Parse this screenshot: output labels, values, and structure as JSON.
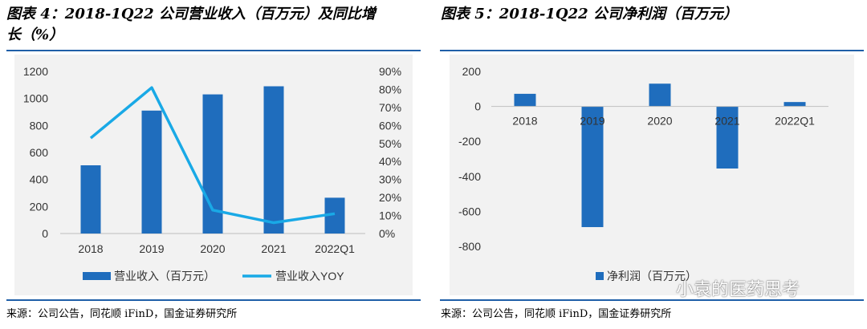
{
  "left_panel": {
    "title_line1": "图表 4：2018-1Q22 公司营业收入（百万元）及同比增",
    "title_line2": "长（%）",
    "source": "来源：公司公告，同花顺 iFinD，国金证券研究所"
  },
  "right_panel": {
    "title": "图表 5：2018-1Q22 公司净利润（百万元）",
    "source": "来源：公司公告，同花顺 iFinD，国金证券研究所"
  },
  "watermark": "小袁的医药思考",
  "colors": {
    "bar": "#1f6dbd",
    "line": "#19a9e6",
    "rule": "#1f5fa8",
    "plot_bg": "#f2f2f2"
  },
  "chart_data": [
    {
      "type": "bar",
      "categories": [
        "2018",
        "2019",
        "2020",
        "2021",
        "2022Q1"
      ],
      "series": [
        {
          "name": "营业收入（百万元）",
          "type": "bar",
          "axis": "left",
          "values": [
            505,
            910,
            1030,
            1090,
            265
          ]
        },
        {
          "name": "营业收入YOY",
          "type": "line",
          "axis": "right",
          "values": [
            53,
            81,
            13,
            6,
            11
          ]
        }
      ],
      "y_left_ticks": [
        "0",
        "200",
        "400",
        "600",
        "800",
        "1000",
        "1200"
      ],
      "y_left_range": [
        0,
        1200
      ],
      "y_right_ticks": [
        "0%",
        "10%",
        "20%",
        "30%",
        "40%",
        "50%",
        "60%",
        "70%",
        "80%",
        "90%"
      ],
      "y_right_range": [
        0,
        90
      ],
      "legend_placement": "bottom",
      "grid": false
    },
    {
      "type": "bar",
      "categories": [
        "2018",
        "2019",
        "2020",
        "2021",
        "2022Q1"
      ],
      "series": [
        {
          "name": "净利润（百万元）",
          "values": [
            72,
            -690,
            130,
            -355,
            25
          ]
        }
      ],
      "y_ticks": [
        "200",
        "0",
        "-200",
        "-400",
        "-600",
        "-800"
      ],
      "y_range": [
        -800,
        200
      ],
      "legend_placement": "bottom-left",
      "grid": false
    }
  ]
}
